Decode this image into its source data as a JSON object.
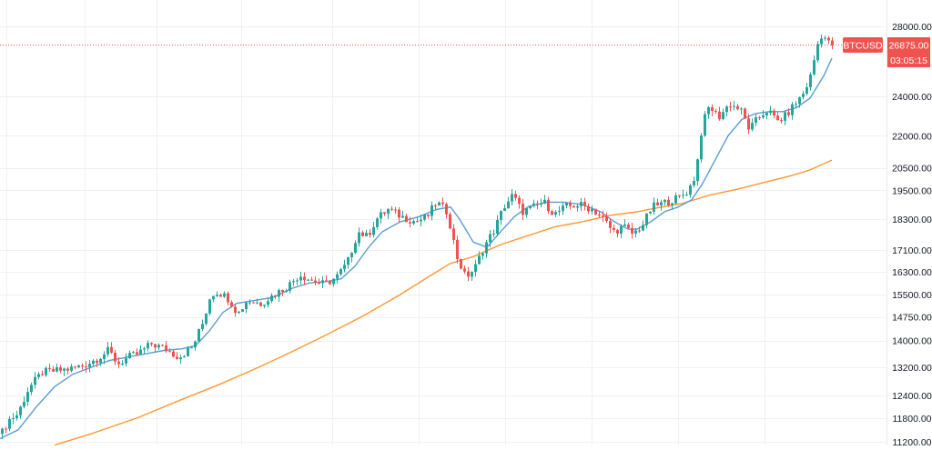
{
  "symbol": "BTCUSD",
  "last_price": "26875.00",
  "countdown": "03:05:15",
  "colors": {
    "up": "#26a69a",
    "down": "#ef5350",
    "ma_fast": "#5b9bd5",
    "ma_slow": "#ff9830",
    "price_tag": "#ef5350",
    "grid": "#eef0f3",
    "axis_text": "#131722"
  },
  "chart_data": {
    "type": "candlestick",
    "title": "",
    "xlabel": "",
    "ylabel": "",
    "y_scale": "log",
    "ylim": [
      11200,
      29000
    ],
    "grid": true,
    "last_price": 26875,
    "y_ticks": [
      {
        "value": 28000,
        "label": "28000.00"
      },
      {
        "value": 24000,
        "label": "24000.00"
      },
      {
        "value": 22000,
        "label": "22000.00"
      },
      {
        "value": 20500,
        "label": "20500.00"
      },
      {
        "value": 19500,
        "label": "19500.00"
      },
      {
        "value": 18300,
        "label": "18300.00"
      },
      {
        "value": 17100,
        "label": "17100.00"
      },
      {
        "value": 16300,
        "label": "16300.00"
      },
      {
        "value": 15500,
        "label": "15500.00"
      },
      {
        "value": 14750,
        "label": "14750.00"
      },
      {
        "value": 14000,
        "label": "14000.00"
      },
      {
        "value": 13200,
        "label": "13200.00"
      },
      {
        "value": 12400,
        "label": "12400.00"
      },
      {
        "value": 11800,
        "label": "11800.00"
      },
      {
        "value": 11200,
        "label": "11200.00"
      }
    ],
    "price_path": [
      [
        0,
        11400
      ],
      [
        8,
        11750
      ],
      [
        18,
        11900
      ],
      [
        30,
        12600
      ],
      [
        45,
        13050
      ],
      [
        60,
        13100
      ],
      [
        75,
        13150
      ],
      [
        90,
        13250
      ],
      [
        105,
        13450
      ],
      [
        118,
        13700
      ],
      [
        128,
        13300
      ],
      [
        140,
        13500
      ],
      [
        150,
        13600
      ],
      [
        165,
        13900
      ],
      [
        180,
        13750
      ],
      [
        195,
        13500
      ],
      [
        210,
        13800
      ],
      [
        222,
        14600
      ],
      [
        230,
        15500
      ],
      [
        238,
        15600
      ],
      [
        250,
        15350
      ],
      [
        260,
        14850
      ],
      [
        270,
        15300
      ],
      [
        285,
        15200
      ],
      [
        300,
        15500
      ],
      [
        315,
        15800
      ],
      [
        328,
        16200
      ],
      [
        340,
        16000
      ],
      [
        355,
        15850
      ],
      [
        368,
        16100
      ],
      [
        380,
        16600
      ],
      [
        392,
        17800
      ],
      [
        402,
        17600
      ],
      [
        412,
        18300
      ],
      [
        425,
        18700
      ],
      [
        440,
        18400
      ],
      [
        455,
        18200
      ],
      [
        468,
        18400
      ],
      [
        478,
        19000
      ],
      [
        490,
        18600
      ],
      [
        500,
        16900
      ],
      [
        510,
        16100
      ],
      [
        520,
        16400
      ],
      [
        530,
        17200
      ],
      [
        542,
        17900
      ],
      [
        552,
        18800
      ],
      [
        562,
        19300
      ],
      [
        572,
        18600
      ],
      [
        585,
        18800
      ],
      [
        596,
        19000
      ],
      [
        608,
        18500
      ],
      [
        620,
        18800
      ],
      [
        635,
        18900
      ],
      [
        650,
        18700
      ],
      [
        662,
        18300
      ],
      [
        672,
        17800
      ],
      [
        684,
        18000
      ],
      [
        694,
        17700
      ],
      [
        705,
        18100
      ],
      [
        715,
        18800
      ],
      [
        730,
        19000
      ],
      [
        745,
        19200
      ],
      [
        755,
        19500
      ],
      [
        763,
        20200
      ],
      [
        770,
        22500
      ],
      [
        778,
        23500
      ],
      [
        788,
        22900
      ],
      [
        800,
        23600
      ],
      [
        812,
        23300
      ],
      [
        822,
        22300
      ],
      [
        832,
        22900
      ],
      [
        842,
        23300
      ],
      [
        852,
        22700
      ],
      [
        862,
        23000
      ],
      [
        872,
        23600
      ],
      [
        882,
        24200
      ],
      [
        890,
        25200
      ],
      [
        896,
        26800
      ],
      [
        902,
        27600
      ],
      [
        908,
        27000
      ],
      [
        914,
        26875
      ]
    ],
    "ma_fast": [
      [
        0,
        11280
      ],
      [
        20,
        11500
      ],
      [
        40,
        12100
      ],
      [
        60,
        12650
      ],
      [
        80,
        13000
      ],
      [
        100,
        13200
      ],
      [
        120,
        13400
      ],
      [
        140,
        13500
      ],
      [
        160,
        13600
      ],
      [
        180,
        13700
      ],
      [
        200,
        13750
      ],
      [
        215,
        13850
      ],
      [
        230,
        14300
      ],
      [
        245,
        14900
      ],
      [
        260,
        15200
      ],
      [
        280,
        15300
      ],
      [
        300,
        15400
      ],
      [
        320,
        15700
      ],
      [
        340,
        15900
      ],
      [
        360,
        15950
      ],
      [
        375,
        16050
      ],
      [
        390,
        16500
      ],
      [
        405,
        17200
      ],
      [
        420,
        17800
      ],
      [
        440,
        18200
      ],
      [
        460,
        18400
      ],
      [
        480,
        18700
      ],
      [
        495,
        18800
      ],
      [
        505,
        18300
      ],
      [
        520,
        17400
      ],
      [
        535,
        17200
      ],
      [
        550,
        17800
      ],
      [
        565,
        18400
      ],
      [
        580,
        18800
      ],
      [
        600,
        19000
      ],
      [
        620,
        19000
      ],
      [
        640,
        18900
      ],
      [
        660,
        18600
      ],
      [
        675,
        18200
      ],
      [
        690,
        17900
      ],
      [
        700,
        17900
      ],
      [
        715,
        18200
      ],
      [
        730,
        18600
      ],
      [
        745,
        18800
      ],
      [
        760,
        19100
      ],
      [
        772,
        19800
      ],
      [
        785,
        20800
      ],
      [
        800,
        22000
      ],
      [
        815,
        22800
      ],
      [
        830,
        23100
      ],
      [
        845,
        23200
      ],
      [
        860,
        23200
      ],
      [
        875,
        23400
      ],
      [
        890,
        23900
      ],
      [
        905,
        25100
      ],
      [
        914,
        26100
      ]
    ],
    "ma_slow": [
      [
        60,
        11120
      ],
      [
        100,
        11400
      ],
      [
        150,
        11800
      ],
      [
        200,
        12300
      ],
      [
        240,
        12700
      ],
      [
        280,
        13150
      ],
      [
        320,
        13650
      ],
      [
        360,
        14200
      ],
      [
        400,
        14800
      ],
      [
        440,
        15500
      ],
      [
        470,
        16100
      ],
      [
        495,
        16600
      ],
      [
        520,
        16850
      ],
      [
        550,
        17300
      ],
      [
        580,
        17650
      ],
      [
        610,
        18000
      ],
      [
        640,
        18200
      ],
      [
        670,
        18450
      ],
      [
        700,
        18600
      ],
      [
        720,
        18750
      ],
      [
        750,
        18950
      ],
      [
        780,
        19300
      ],
      [
        810,
        19550
      ],
      [
        840,
        19850
      ],
      [
        870,
        20150
      ],
      [
        890,
        20400
      ],
      [
        914,
        20850
      ]
    ]
  }
}
